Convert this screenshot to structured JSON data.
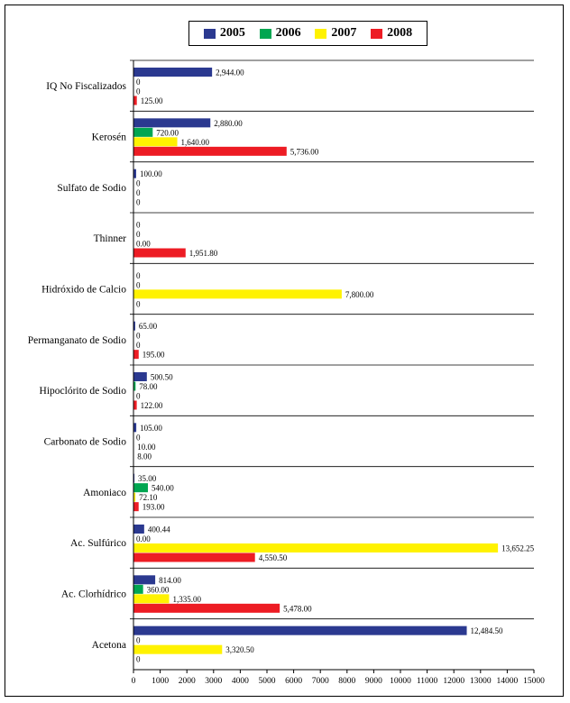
{
  "chart_data": {
    "type": "bar",
    "orientation": "horizontal",
    "title": "",
    "xlabel": "",
    "ylabel": "",
    "xlim": [
      0,
      15000
    ],
    "x_ticks": [
      "0",
      "1000",
      "2000",
      "3000",
      "4000",
      "5000",
      "6000",
      "7000",
      "8000",
      "9000",
      "10000",
      "11000",
      "12000",
      "13000",
      "14000",
      "15000"
    ],
    "grid": false,
    "legend_position": "top",
    "categories": [
      "IQ No Fiscalizados",
      "Kerosén",
      "Sulfato de Sodio",
      "Thinner",
      "Hidróxido de Calcio",
      "Permanganato de Sodio",
      "Hipoclórito de Sodio",
      "Carbonato de Sodio",
      "Amoniaco",
      "Ac. Sulfúrico",
      "Ac. Clorhídrico",
      "Acetona"
    ],
    "series": [
      {
        "name": "2005",
        "color": "#2B3990",
        "values": [
          2944,
          2880,
          100,
          0,
          0,
          65,
          500.5,
          105,
          35,
          400.44,
          814,
          12484.5
        ],
        "labels": [
          "2,944.00",
          "2,880.00",
          "100.00",
          "0",
          "0",
          "65.00",
          "500.50",
          "105.00",
          "35.00",
          "400.44",
          "814.00",
          "12,484.50"
        ]
      },
      {
        "name": "2006",
        "color": "#00A651",
        "values": [
          0,
          720,
          0,
          0,
          0,
          0,
          78,
          0,
          540,
          0,
          360,
          0
        ],
        "labels": [
          "0",
          "720.00",
          "0",
          "0",
          "0",
          "0",
          "78.00",
          "0",
          "540.00",
          "0.00",
          "360.00",
          "0"
        ]
      },
      {
        "name": "2007",
        "color": "#FFF200",
        "values": [
          0,
          1640,
          0,
          0,
          7800,
          0,
          0,
          10,
          72.1,
          13652.25,
          1335,
          3320.5
        ],
        "labels": [
          "0",
          "1,640.00",
          "0",
          "0.00",
          "7,800.00",
          "0",
          "0",
          "10.00",
          "72.10",
          "13,652.25",
          "1,335.00",
          "3,320.50"
        ]
      },
      {
        "name": "2008",
        "color": "#ED1C24",
        "values": [
          125,
          5736,
          0,
          1951.8,
          0,
          195,
          122,
          8,
          193,
          4550.5,
          5478,
          0
        ],
        "labels": [
          "125.00",
          "5,736.00",
          "0",
          "1,951.80",
          "0",
          "195.00",
          "122.00",
          "8.00",
          "193.00",
          "4,550.50",
          "5,478.00",
          "0"
        ]
      }
    ]
  }
}
